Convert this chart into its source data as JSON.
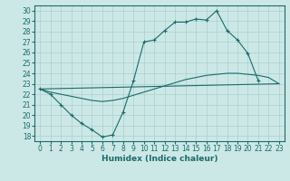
{
  "bg_color": "#cce8e6",
  "line_color": "#1a6b6b",
  "grid_color": "#aacfcd",
  "xlabel": "Humidex (Indice chaleur)",
  "s1x": [
    0,
    1,
    2,
    3,
    4,
    5,
    6,
    7,
    8,
    9,
    10,
    11,
    12,
    13,
    14,
    15,
    16,
    17,
    18,
    19,
    20,
    21
  ],
  "s1y": [
    22.5,
    22.0,
    21.0,
    20.0,
    19.2,
    18.6,
    17.9,
    18.1,
    20.3,
    23.3,
    27.0,
    27.2,
    28.1,
    28.9,
    28.9,
    29.2,
    29.1,
    30.0,
    28.1,
    27.2,
    25.9,
    23.3
  ],
  "s2x": [
    0,
    23
  ],
  "s2y": [
    22.5,
    23.0
  ],
  "s3x": [
    0,
    1,
    2,
    3,
    4,
    5,
    6,
    7,
    8,
    9,
    10,
    11,
    12,
    13,
    14,
    15,
    16,
    17,
    18,
    19,
    20,
    21,
    22,
    23
  ],
  "s3y": [
    22.5,
    22.2,
    22.0,
    21.8,
    21.6,
    21.4,
    21.3,
    21.4,
    21.6,
    21.9,
    22.2,
    22.5,
    22.8,
    23.1,
    23.4,
    23.6,
    23.8,
    23.9,
    24.0,
    24.0,
    23.9,
    23.8,
    23.6,
    23.0
  ],
  "xlim": [
    -0.5,
    23.5
  ],
  "ylim": [
    17.5,
    30.5
  ],
  "xticks": [
    0,
    1,
    2,
    3,
    4,
    5,
    6,
    7,
    8,
    9,
    10,
    11,
    12,
    13,
    14,
    15,
    16,
    17,
    18,
    19,
    20,
    21,
    22,
    23
  ],
  "yticks": [
    18,
    19,
    20,
    21,
    22,
    23,
    24,
    25,
    26,
    27,
    28,
    29,
    30
  ],
  "tick_fontsize": 5.5,
  "xlabel_fontsize": 6.5
}
